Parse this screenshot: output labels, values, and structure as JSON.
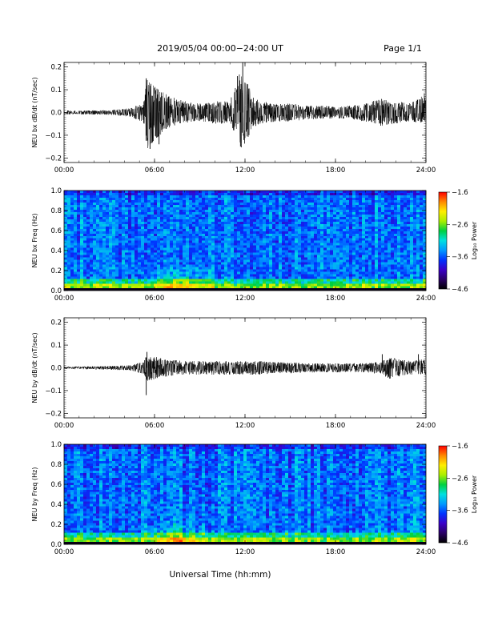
{
  "header": {
    "date_range": "2019/05/04  00:00−24:00 UT",
    "page": "Page 1/1"
  },
  "xaxis_title": "Universal Time (hh:mm)",
  "colors": {
    "trace": "#000000",
    "axis": "#000000",
    "colormap": [
      "#000000",
      "#2a0066",
      "#3a00c8",
      "#0033ff",
      "#0099ff",
      "#00e0e0",
      "#00d040",
      "#aaee00",
      "#ffee00",
      "#ff8800",
      "#ff0000"
    ]
  },
  "chart_data": [
    {
      "type": "line",
      "ylabel": "NEU bx dB/dt (nT/sec)",
      "xticks": [
        "00:00",
        "06:00",
        "12:00",
        "18:00",
        "24:00"
      ],
      "yticks": [
        "−0.2",
        "−0.1",
        "0.0",
        "0.1",
        "0.2"
      ],
      "xlim": [
        0,
        24
      ],
      "ylim": [
        -0.22,
        0.22
      ],
      "envelope": {
        "x_hours": [
          0,
          3,
          4.5,
          5.3,
          5.5,
          6,
          7,
          8,
          9,
          10,
          11,
          11.8,
          12.5,
          13,
          14,
          15,
          16,
          17,
          18,
          19,
          20,
          21,
          22,
          23,
          24
        ],
        "upper": [
          0.008,
          0.01,
          0.02,
          0.05,
          0.15,
          0.12,
          0.07,
          0.05,
          0.04,
          0.05,
          0.05,
          0.2,
          0.07,
          0.05,
          0.04,
          0.04,
          0.03,
          0.03,
          0.025,
          0.03,
          0.04,
          0.06,
          0.05,
          0.04,
          0.09
        ],
        "lower": [
          -0.008,
          -0.01,
          -0.02,
          -0.05,
          -0.17,
          -0.12,
          -0.07,
          -0.05,
          -0.04,
          -0.05,
          -0.05,
          -0.16,
          -0.07,
          -0.05,
          -0.04,
          -0.04,
          -0.03,
          -0.03,
          -0.025,
          -0.03,
          -0.04,
          -0.06,
          -0.05,
          -0.04,
          -0.05
        ]
      },
      "spikes": [
        {
          "x_hours": 5.45,
          "y": 0.15
        },
        {
          "x_hours": 5.7,
          "y": -0.16
        },
        {
          "x_hours": 6.3,
          "y": -0.14
        },
        {
          "x_hours": 11.5,
          "y": 0.16
        },
        {
          "x_hours": 11.85,
          "y": 0.22
        },
        {
          "x_hours": 11.7,
          "y": -0.15
        }
      ]
    },
    {
      "type": "heatmap",
      "ylabel": "NEU bx Freq (Hz)",
      "xticks": [
        "00:00",
        "06:00",
        "12:00",
        "18:00",
        "24:00"
      ],
      "yticks": [
        "0.0",
        "0.2",
        "0.4",
        "0.6",
        "0.8",
        "1.0"
      ],
      "xlim": [
        0,
        24
      ],
      "ylim": [
        0,
        1.0
      ],
      "colorbar": {
        "label": "Log₁₀ Power",
        "ticks": [
          "−1.6",
          "−2.6",
          "−3.6",
          "−4.6"
        ],
        "range": [
          -4.6,
          -1.6
        ]
      },
      "features": {
        "enhanced_low_freq_hours": [
          6,
          10
        ],
        "peak_hour": 7.7
      }
    },
    {
      "type": "line",
      "ylabel": "NEU by dB/dt (nT/sec)",
      "xticks": [
        "00:00",
        "06:00",
        "12:00",
        "18:00",
        "24:00"
      ],
      "yticks": [
        "−0.2",
        "−0.1",
        "0.0",
        "0.1",
        "0.2"
      ],
      "xlim": [
        0,
        24
      ],
      "ylim": [
        -0.22,
        0.22
      ],
      "envelope": {
        "x_hours": [
          0,
          3,
          4.5,
          5.3,
          5.5,
          6,
          7,
          8,
          9,
          10,
          11,
          12,
          13,
          14,
          15,
          16,
          17,
          18,
          19,
          20,
          21,
          21.5,
          22,
          23,
          24
        ],
        "upper": [
          0.005,
          0.008,
          0.012,
          0.03,
          0.07,
          0.05,
          0.035,
          0.03,
          0.03,
          0.03,
          0.03,
          0.03,
          0.03,
          0.025,
          0.025,
          0.02,
          0.02,
          0.02,
          0.02,
          0.02,
          0.03,
          0.05,
          0.04,
          0.03,
          0.04
        ],
        "lower": [
          -0.005,
          -0.008,
          -0.012,
          -0.03,
          -0.06,
          -0.05,
          -0.035,
          -0.03,
          -0.03,
          -0.03,
          -0.03,
          -0.03,
          -0.03,
          -0.025,
          -0.025,
          -0.02,
          -0.02,
          -0.02,
          -0.02,
          -0.02,
          -0.03,
          -0.05,
          -0.04,
          -0.03,
          -0.03
        ]
      },
      "spikes": [
        {
          "x_hours": 5.5,
          "y": 0.07
        },
        {
          "x_hours": 5.45,
          "y": -0.12
        },
        {
          "x_hours": 21.1,
          "y": 0.06
        },
        {
          "x_hours": 23.5,
          "y": 0.06
        }
      ]
    },
    {
      "type": "heatmap",
      "ylabel": "NEU by Freq (Hz)",
      "xticks": [
        "00:00",
        "06:00",
        "12:00",
        "18:00",
        "24:00"
      ],
      "yticks": [
        "0.0",
        "0.2",
        "0.4",
        "0.6",
        "0.8",
        "1.0"
      ],
      "xlim": [
        0,
        24
      ],
      "ylim": [
        0,
        1.0
      ],
      "colorbar": {
        "label": "Log₁₀ Power",
        "ticks": [
          "−1.6",
          "−2.6",
          "−3.6",
          "−4.6"
        ],
        "range": [
          -4.6,
          -1.6
        ]
      },
      "features": {
        "enhanced_low_freq_hours": [
          6,
          10
        ],
        "peak_hour": 7.7
      }
    }
  ]
}
